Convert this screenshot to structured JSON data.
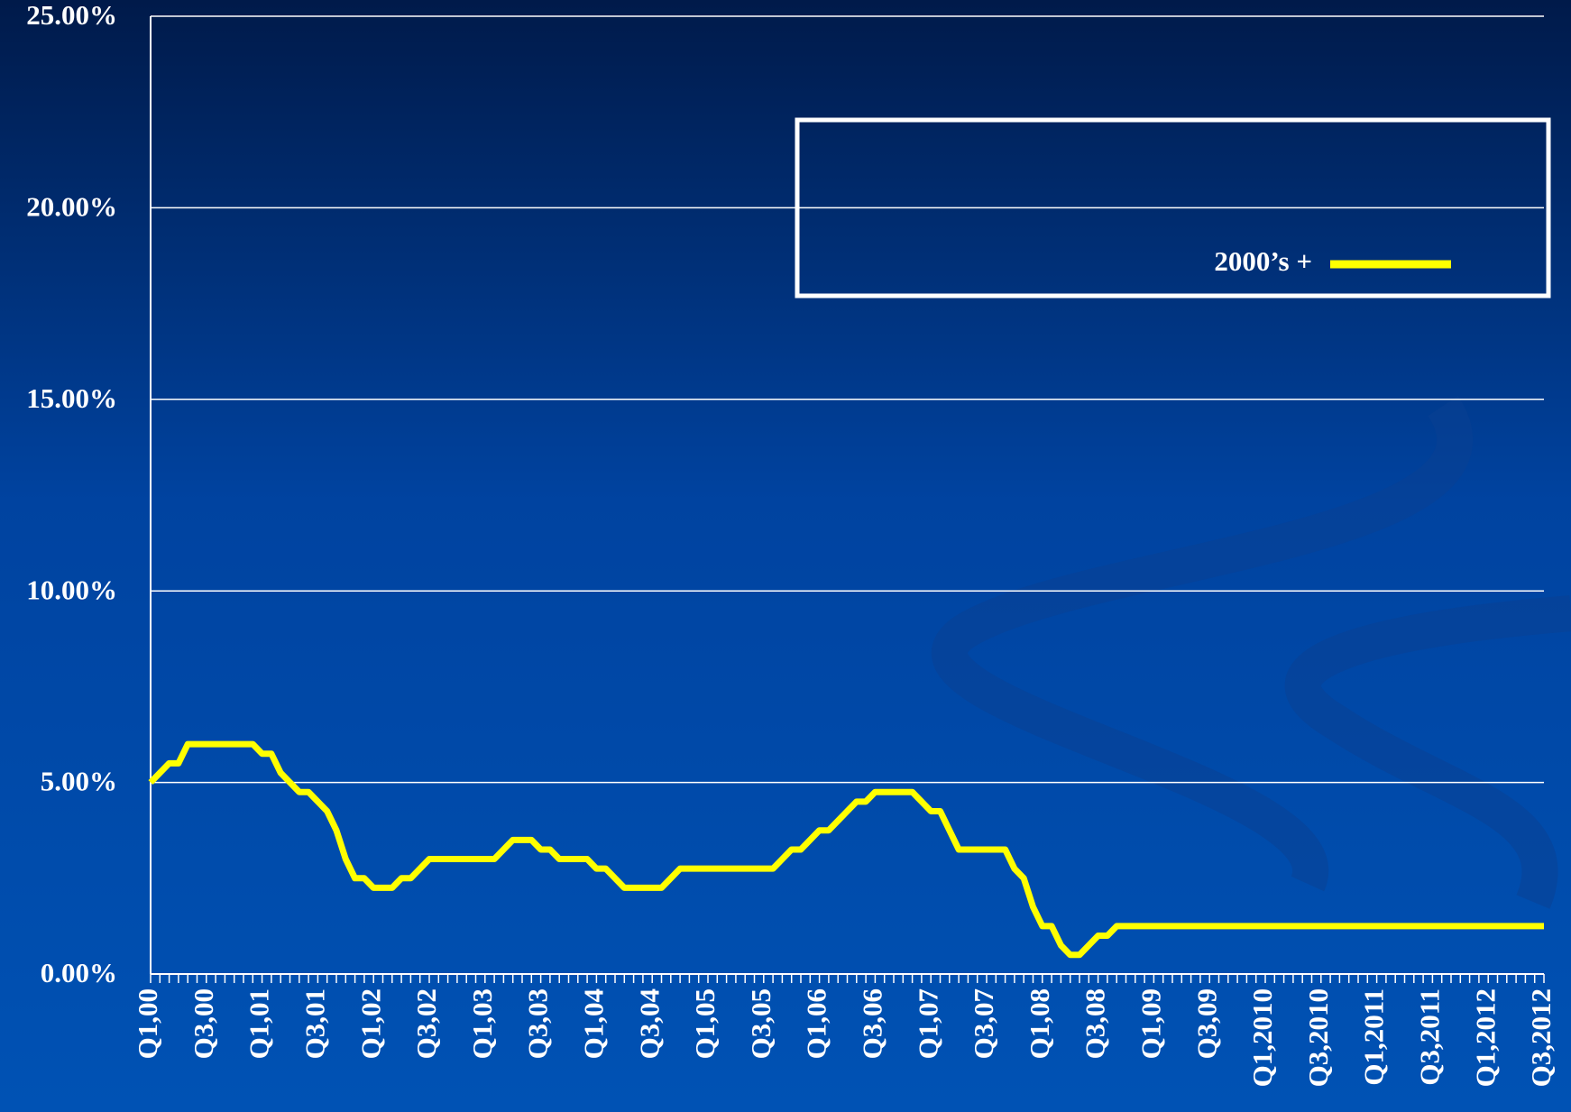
{
  "chart_data": {
    "type": "line",
    "categories": [
      "Q1,00",
      null,
      null,
      null,
      null,
      null,
      "Q3,00",
      null,
      null,
      null,
      null,
      null,
      "Q1,01",
      null,
      null,
      null,
      null,
      null,
      "Q3,01",
      null,
      null,
      null,
      null,
      null,
      "Q1,02",
      null,
      null,
      null,
      null,
      null,
      "Q3,02",
      null,
      null,
      null,
      null,
      null,
      "Q1,03",
      null,
      null,
      null,
      null,
      null,
      "Q3,03",
      null,
      null,
      null,
      null,
      null,
      "Q1,04",
      null,
      null,
      null,
      null,
      null,
      "Q3,04",
      null,
      null,
      null,
      null,
      null,
      "Q1,05",
      null,
      null,
      null,
      null,
      null,
      "Q3,05",
      null,
      null,
      null,
      null,
      null,
      "Q1,06",
      null,
      null,
      null,
      null,
      null,
      "Q3,06",
      null,
      null,
      null,
      null,
      null,
      "Q1,07",
      null,
      null,
      null,
      null,
      null,
      "Q3,07",
      null,
      null,
      null,
      null,
      null,
      "Q1,08",
      null,
      null,
      null,
      null,
      null,
      "Q3,08",
      null,
      null,
      null,
      null,
      null,
      "Q1,09",
      null,
      null,
      null,
      null,
      null,
      "Q3,09",
      null,
      null,
      null,
      null,
      null,
      "Q1,2010",
      null,
      null,
      null,
      null,
      null,
      "Q3,2010",
      null,
      null,
      null,
      null,
      null,
      "Q1,2011",
      null,
      null,
      null,
      null,
      null,
      "Q3,2011",
      null,
      null,
      null,
      null,
      null,
      "Q1,2012",
      null,
      null,
      null,
      null,
      null,
      "Q3,2012"
    ],
    "series": [
      {
        "name": "2000’s +",
        "color": "#ffff00",
        "values": [
          5.0,
          5.25,
          5.5,
          5.5,
          6.0,
          6.0,
          6.0,
          6.0,
          6.0,
          6.0,
          6.0,
          6.0,
          5.75,
          5.75,
          5.25,
          5.0,
          4.75,
          4.75,
          4.5,
          4.25,
          3.75,
          3.0,
          2.5,
          2.5,
          2.25,
          2.25,
          2.25,
          2.5,
          2.5,
          2.75,
          3.0,
          3.0,
          3.0,
          3.0,
          3.0,
          3.0,
          3.0,
          3.0,
          3.25,
          3.5,
          3.5,
          3.5,
          3.25,
          3.25,
          3.0,
          3.0,
          3.0,
          3.0,
          2.75,
          2.75,
          2.5,
          2.25,
          2.25,
          2.25,
          2.25,
          2.25,
          2.5,
          2.75,
          2.75,
          2.75,
          2.75,
          2.75,
          2.75,
          2.75,
          2.75,
          2.75,
          2.75,
          2.75,
          3.0,
          3.25,
          3.25,
          3.5,
          3.75,
          3.75,
          4.0,
          4.25,
          4.5,
          4.5,
          4.75,
          4.75,
          4.75,
          4.75,
          4.75,
          4.5,
          4.25,
          4.25,
          3.75,
          3.25,
          3.25,
          3.25,
          3.25,
          3.25,
          3.25,
          2.75,
          2.5,
          1.75,
          1.25,
          1.25,
          0.75,
          0.5,
          0.5,
          0.75,
          1.0,
          1.0,
          1.25,
          1.25,
          1.25,
          1.25,
          1.25,
          1.25,
          1.25,
          1.25,
          1.25,
          1.25,
          1.25,
          1.25,
          1.25,
          1.25,
          1.25,
          1.25,
          1.25,
          1.25,
          1.25,
          1.25,
          1.25,
          1.25,
          1.25,
          1.25,
          1.25,
          1.25,
          1.25,
          1.25,
          1.25,
          1.25,
          1.25,
          1.25,
          1.25,
          1.25,
          1.25,
          1.25,
          1.25,
          1.25,
          1.25,
          1.25,
          1.25,
          1.25,
          1.25,
          1.25,
          1.25,
          1.25,
          1.25
        ]
      }
    ],
    "ylim": [
      0,
      25
    ],
    "yticks": [
      {
        "value": 0,
        "label": "0.00%"
      },
      {
        "value": 5,
        "label": "5.00%"
      },
      {
        "value": 10,
        "label": "10.00%"
      },
      {
        "value": 15,
        "label": "15.00%"
      },
      {
        "value": 20,
        "label": "20.00%"
      },
      {
        "value": 25,
        "label": "25.00%"
      }
    ],
    "grid": true,
    "legend": "upper right"
  }
}
